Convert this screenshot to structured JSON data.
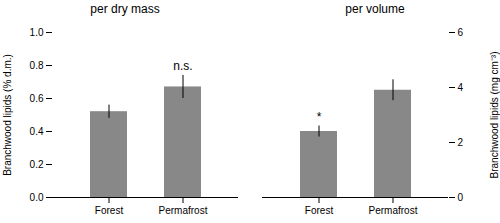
{
  "chart_data": [
    {
      "type": "bar",
      "title": "per dry mass",
      "categories": [
        "Forest",
        "Permafrost"
      ],
      "values": [
        0.52,
        0.67
      ],
      "errors": [
        0.04,
        0.07
      ],
      "color": "#888888",
      "ylabel": "Branchwood lipids (% d.m.)",
      "ylim": [
        0,
        1.0
      ],
      "yticks": [
        {
          "value": 0.0,
          "label": "0.0"
        },
        0.2,
        0.4,
        0.6,
        0.8,
        {
          "value": 1.0,
          "label": "1.0"
        }
      ],
      "annotations": [
        {
          "text": "n.s.",
          "category": "Permafrost"
        }
      ]
    },
    {
      "type": "bar",
      "title": "per volume",
      "categories": [
        "Forest",
        "Permafrost"
      ],
      "values": [
        2.4,
        3.9
      ],
      "errors": [
        0.2,
        0.38
      ],
      "color": "#888888",
      "ylabel": "Branchwood lipids (mg cm⁻³)",
      "ylim": [
        0,
        6
      ],
      "yticks": [
        0,
        2,
        4,
        6
      ],
      "annotations": [
        {
          "text": "*",
          "category": "Forest"
        }
      ]
    }
  ]
}
